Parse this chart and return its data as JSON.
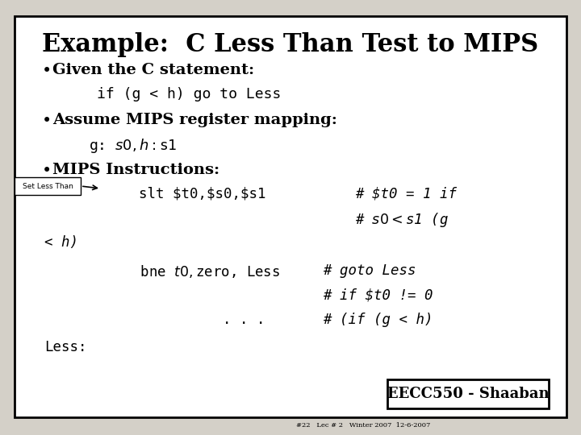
{
  "title": "Example:  C Less Than Test to MIPS",
  "bg_color": "#d4d0c8",
  "slide_bg": "#ffffff",
  "border_color": "#000000",
  "bullet1_text": "Given the C statement:",
  "bullet1_code": "if (g < h) go to Less",
  "bullet2_text": "Assume MIPS register mapping:",
  "bullet2_code": "g: $s0,   h: $s1",
  "bullet3_text": "MIPS Instructions:",
  "set_less_than_label": "Set Less Than",
  "slt_left": "    slt $t0,$s0,$s1",
  "slt_right": "# $t0 = 1 if",
  "slt_right2": "# $s0<$s1 (g",
  "wrap_left": "< h)",
  "bne_left": "        bne $t0,$zero, Less",
  "bne_right": "# goto Less",
  "bne_right2": "# if $t0 != 0",
  "dots_left": "            . . .",
  "dots_right": "# (if (g < h)",
  "less_label": "Less:",
  "footer_box": "EECC550 - Shaaban",
  "footer_small": "#22   Lec # 2   Winter 2007  12-6-2007"
}
